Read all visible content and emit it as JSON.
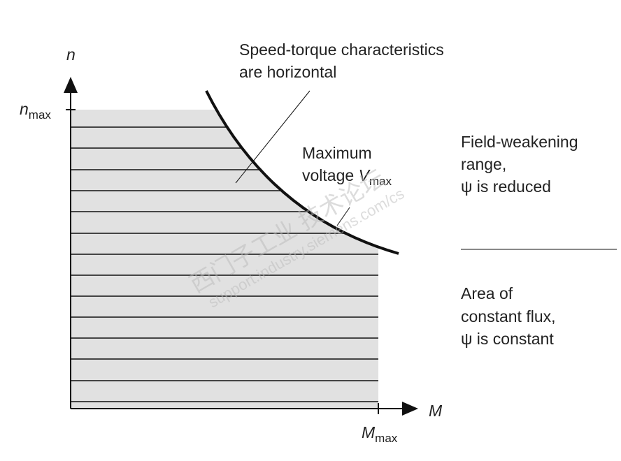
{
  "axes": {
    "y_label": "n",
    "y_max": {
      "main": "n",
      "sub": "max"
    },
    "x_label": "M",
    "x_max": {
      "main": "M",
      "sub": "max"
    }
  },
  "annotations": {
    "speed_torque": [
      "Speed-torque characteristics",
      "are horizontal"
    ],
    "max_voltage": {
      "line1": "Maximum",
      "line2": "voltage ",
      "var": "V",
      "sub": "max"
    }
  },
  "regions": {
    "field_weakening": [
      "Field-weakening",
      "range,",
      "ψ is reduced"
    ],
    "constant_flux": [
      "Area of",
      "constant flux,",
      "ψ is constant"
    ]
  },
  "watermark": [
    "西门子工业 技术论坛",
    "support.industry.siemens.com/cs"
  ]
}
